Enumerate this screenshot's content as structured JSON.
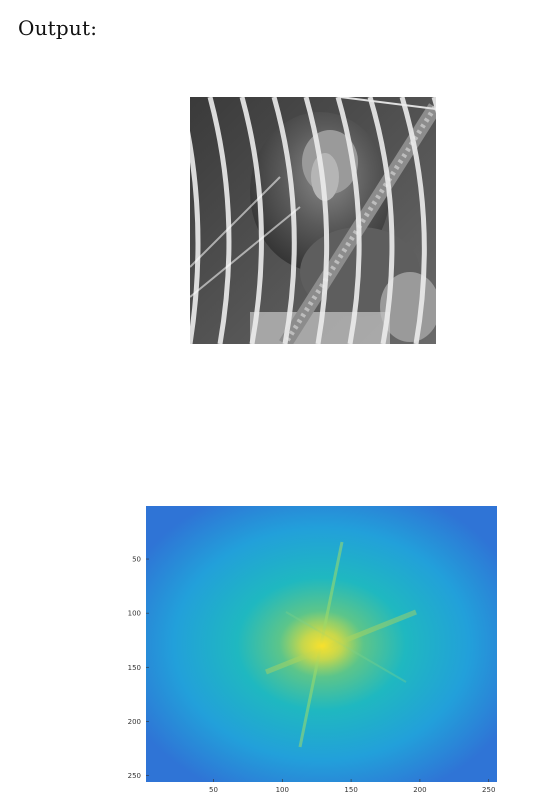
{
  "heading": "Output:",
  "spectrum": {
    "x_ticks": [
      "50",
      "100",
      "150",
      "200",
      "250"
    ],
    "y_ticks": [
      "50",
      "100",
      "150",
      "200",
      "250"
    ],
    "xlim": [
      1,
      256
    ],
    "ylim": [
      1,
      256
    ],
    "colormap": "parula",
    "colors": {
      "low": "#2f74d6",
      "mid": "#1fb8c0",
      "high": "#f5e33a"
    }
  },
  "photo": {
    "icon": "baboon-behind-fence-photo"
  }
}
